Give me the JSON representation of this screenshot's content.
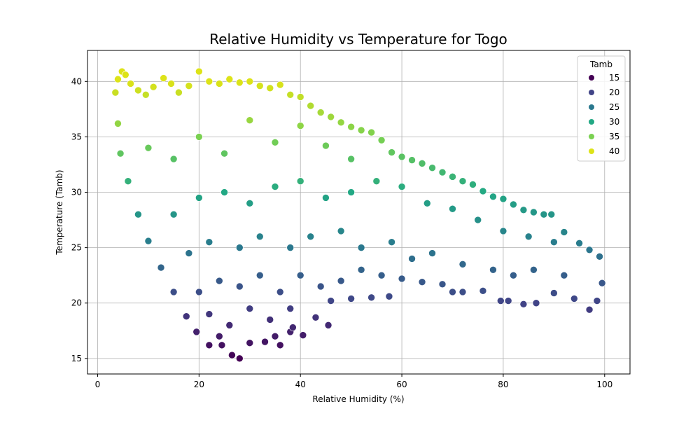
{
  "chart_data": {
    "type": "scatter",
    "title": "Relative Humidity vs Temperature for Togo",
    "xlabel": "Relative Humidity (%)",
    "ylabel": "Temperature (Tamb)",
    "xlim": [
      -2,
      105
    ],
    "ylim": [
      13.6,
      42.8
    ],
    "xticks": [
      0,
      20,
      40,
      60,
      80,
      100
    ],
    "yticks": [
      15,
      20,
      25,
      30,
      35,
      40
    ],
    "grid": true,
    "colormap": "viridis",
    "hue_variable": "Tamb",
    "legend": {
      "title": "Tamb",
      "position": "top-right",
      "entries": [
        {
          "label": "15",
          "value": 15,
          "color": "#440154"
        },
        {
          "label": "20",
          "value": 20,
          "color": "#414487"
        },
        {
          "label": "25",
          "value": 25,
          "color": "#2a788e"
        },
        {
          "label": "30",
          "value": 30,
          "color": "#22a884"
        },
        {
          "label": "35",
          "value": 35,
          "color": "#7ad151"
        },
        {
          "label": "40",
          "value": 40,
          "color": "#dde318"
        }
      ]
    },
    "points": [
      {
        "x": 3.5,
        "y": 39.0
      },
      {
        "x": 4.0,
        "y": 40.2
      },
      {
        "x": 4.8,
        "y": 40.9
      },
      {
        "x": 5.5,
        "y": 40.6
      },
      {
        "x": 6.5,
        "y": 39.8
      },
      {
        "x": 8.0,
        "y": 39.2
      },
      {
        "x": 9.5,
        "y": 38.8
      },
      {
        "x": 11.0,
        "y": 39.5
      },
      {
        "x": 13.0,
        "y": 40.3
      },
      {
        "x": 14.5,
        "y": 39.8
      },
      {
        "x": 16.0,
        "y": 39.0
      },
      {
        "x": 18.0,
        "y": 39.6
      },
      {
        "x": 20.0,
        "y": 40.9
      },
      {
        "x": 22.0,
        "y": 40.0
      },
      {
        "x": 24.0,
        "y": 39.8
      },
      {
        "x": 26.0,
        "y": 40.2
      },
      {
        "x": 28.0,
        "y": 39.9
      },
      {
        "x": 30.0,
        "y": 40.0
      },
      {
        "x": 32.0,
        "y": 39.6
      },
      {
        "x": 34.0,
        "y": 39.4
      },
      {
        "x": 36.0,
        "y": 39.7
      },
      {
        "x": 38.0,
        "y": 38.8
      },
      {
        "x": 40.0,
        "y": 38.6
      },
      {
        "x": 42.0,
        "y": 37.8
      },
      {
        "x": 44.0,
        "y": 37.2
      },
      {
        "x": 46.0,
        "y": 36.8
      },
      {
        "x": 48.0,
        "y": 36.3
      },
      {
        "x": 50.0,
        "y": 35.9
      },
      {
        "x": 52.0,
        "y": 35.6
      },
      {
        "x": 54.0,
        "y": 35.4
      },
      {
        "x": 56.0,
        "y": 34.7
      },
      {
        "x": 58.0,
        "y": 33.6
      },
      {
        "x": 60.0,
        "y": 33.2
      },
      {
        "x": 62.0,
        "y": 32.9
      },
      {
        "x": 64.0,
        "y": 32.6
      },
      {
        "x": 66.0,
        "y": 32.2
      },
      {
        "x": 68.0,
        "y": 31.8
      },
      {
        "x": 70.0,
        "y": 31.4
      },
      {
        "x": 72.0,
        "y": 31.0
      },
      {
        "x": 74.0,
        "y": 30.7
      },
      {
        "x": 76.0,
        "y": 30.1
      },
      {
        "x": 78.0,
        "y": 29.6
      },
      {
        "x": 80.0,
        "y": 29.4
      },
      {
        "x": 82.0,
        "y": 28.9
      },
      {
        "x": 84.0,
        "y": 28.4
      },
      {
        "x": 86.0,
        "y": 28.2
      },
      {
        "x": 88.0,
        "y": 28.0
      },
      {
        "x": 89.5,
        "y": 28.0
      },
      {
        "x": 92.0,
        "y": 26.4
      },
      {
        "x": 95.0,
        "y": 25.4
      },
      {
        "x": 97.0,
        "y": 24.8
      },
      {
        "x": 99.0,
        "y": 24.2
      },
      {
        "x": 99.5,
        "y": 21.8
      },
      {
        "x": 98.5,
        "y": 20.2
      },
      {
        "x": 97.0,
        "y": 19.4
      },
      {
        "x": 94.0,
        "y": 20.4
      },
      {
        "x": 90.0,
        "y": 20.9
      },
      {
        "x": 86.5,
        "y": 20.0
      },
      {
        "x": 84.0,
        "y": 19.9
      },
      {
        "x": 81.0,
        "y": 20.2
      },
      {
        "x": 79.5,
        "y": 20.2
      },
      {
        "x": 76.0,
        "y": 21.1
      },
      {
        "x": 72.0,
        "y": 21.0
      },
      {
        "x": 70.0,
        "y": 21.0
      },
      {
        "x": 68.0,
        "y": 21.7
      },
      {
        "x": 64.0,
        "y": 21.9
      },
      {
        "x": 60.0,
        "y": 22.2
      },
      {
        "x": 57.5,
        "y": 20.6
      },
      {
        "x": 54.0,
        "y": 20.5
      },
      {
        "x": 50.0,
        "y": 20.4
      },
      {
        "x": 46.0,
        "y": 20.2
      },
      {
        "x": 45.5,
        "y": 18.0
      },
      {
        "x": 43.0,
        "y": 18.7
      },
      {
        "x": 40.5,
        "y": 17.1
      },
      {
        "x": 38.0,
        "y": 17.4
      },
      {
        "x": 36.0,
        "y": 16.2
      },
      {
        "x": 33.0,
        "y": 16.5
      },
      {
        "x": 30.0,
        "y": 16.4
      },
      {
        "x": 28.0,
        "y": 15.0
      },
      {
        "x": 26.5,
        "y": 15.3
      },
      {
        "x": 24.5,
        "y": 16.2
      },
      {
        "x": 22.0,
        "y": 16.2
      },
      {
        "x": 19.5,
        "y": 17.4
      },
      {
        "x": 17.5,
        "y": 18.8
      },
      {
        "x": 15.0,
        "y": 21.0
      },
      {
        "x": 12.5,
        "y": 23.2
      },
      {
        "x": 10.0,
        "y": 25.6
      },
      {
        "x": 8.0,
        "y": 28.0
      },
      {
        "x": 6.0,
        "y": 31.0
      },
      {
        "x": 4.5,
        "y": 33.5
      },
      {
        "x": 4.0,
        "y": 36.2
      },
      {
        "x": 10.0,
        "y": 34.0
      },
      {
        "x": 15.0,
        "y": 33.0
      },
      {
        "x": 20.0,
        "y": 35.0
      },
      {
        "x": 25.0,
        "y": 33.5
      },
      {
        "x": 30.0,
        "y": 36.5
      },
      {
        "x": 35.0,
        "y": 34.5
      },
      {
        "x": 40.0,
        "y": 36.0
      },
      {
        "x": 45.0,
        "y": 34.2
      },
      {
        "x": 50.0,
        "y": 33.0
      },
      {
        "x": 15.0,
        "y": 28.0
      },
      {
        "x": 20.0,
        "y": 29.5
      },
      {
        "x": 25.0,
        "y": 30.0
      },
      {
        "x": 30.0,
        "y": 29.0
      },
      {
        "x": 35.0,
        "y": 30.5
      },
      {
        "x": 40.0,
        "y": 31.0
      },
      {
        "x": 45.0,
        "y": 29.5
      },
      {
        "x": 50.0,
        "y": 30.0
      },
      {
        "x": 55.0,
        "y": 31.0
      },
      {
        "x": 60.0,
        "y": 30.5
      },
      {
        "x": 65.0,
        "y": 29.0
      },
      {
        "x": 70.0,
        "y": 28.5
      },
      {
        "x": 75.0,
        "y": 27.5
      },
      {
        "x": 80.0,
        "y": 26.5
      },
      {
        "x": 85.0,
        "y": 26.0
      },
      {
        "x": 90.0,
        "y": 25.5
      },
      {
        "x": 18.0,
        "y": 24.5
      },
      {
        "x": 22.0,
        "y": 25.5
      },
      {
        "x": 28.0,
        "y": 25.0
      },
      {
        "x": 32.0,
        "y": 26.0
      },
      {
        "x": 38.0,
        "y": 25.0
      },
      {
        "x": 42.0,
        "y": 26.0
      },
      {
        "x": 48.0,
        "y": 26.5
      },
      {
        "x": 52.0,
        "y": 25.0
      },
      {
        "x": 58.0,
        "y": 25.5
      },
      {
        "x": 62.0,
        "y": 24.0
      },
      {
        "x": 66.0,
        "y": 24.5
      },
      {
        "x": 72.0,
        "y": 23.5
      },
      {
        "x": 78.0,
        "y": 23.0
      },
      {
        "x": 82.0,
        "y": 22.5
      },
      {
        "x": 86.0,
        "y": 23.0
      },
      {
        "x": 92.0,
        "y": 22.5
      },
      {
        "x": 20.0,
        "y": 21.0
      },
      {
        "x": 24.0,
        "y": 22.0
      },
      {
        "x": 28.0,
        "y": 21.5
      },
      {
        "x": 32.0,
        "y": 22.5
      },
      {
        "x": 36.0,
        "y": 21.0
      },
      {
        "x": 40.0,
        "y": 22.5
      },
      {
        "x": 44.0,
        "y": 21.5
      },
      {
        "x": 48.0,
        "y": 22.0
      },
      {
        "x": 52.0,
        "y": 23.0
      },
      {
        "x": 56.0,
        "y": 22.5
      },
      {
        "x": 22.0,
        "y": 19.0
      },
      {
        "x": 26.0,
        "y": 18.0
      },
      {
        "x": 30.0,
        "y": 19.5
      },
      {
        "x": 34.0,
        "y": 18.5
      },
      {
        "x": 38.0,
        "y": 19.5
      },
      {
        "x": 24.0,
        "y": 17.0
      },
      {
        "x": 35.0,
        "y": 17.0
      },
      {
        "x": 38.5,
        "y": 17.8
      }
    ]
  }
}
